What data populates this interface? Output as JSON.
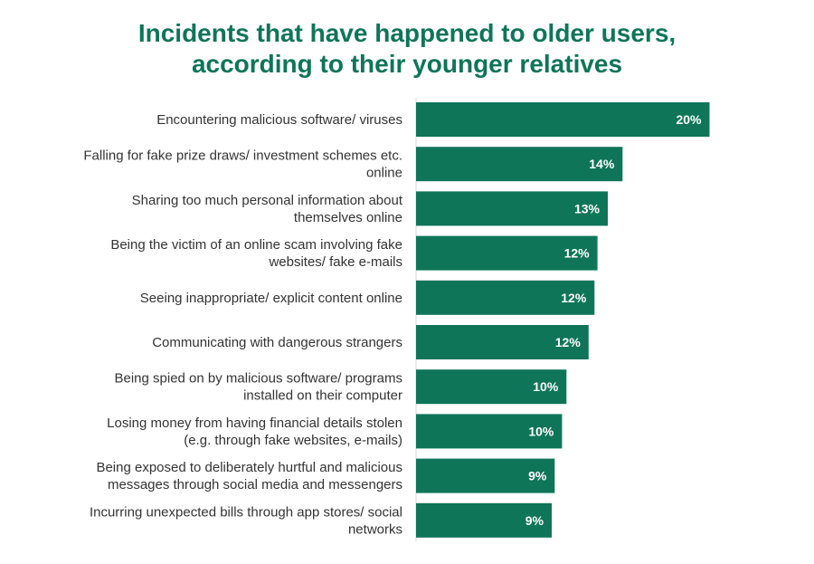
{
  "title_lines": [
    "Incidents that have happened to older users,",
    "according to their younger relatives"
  ],
  "colors": {
    "bar": "#0f7558",
    "title": "#0f7558",
    "axis": "#d9d9d9",
    "label": "#333333",
    "value": "#ffffff"
  },
  "chart_data": {
    "type": "bar",
    "orientation": "horizontal",
    "title": "Incidents that have happened to older users, according to their younger relatives",
    "xlabel": "",
    "ylabel": "",
    "value_unit": "%",
    "grid": false,
    "legend": "none",
    "categories": [
      [
        "Encountering malicious software/ viruses"
      ],
      [
        "Falling for fake prize draws/ investment schemes etc.",
        "online"
      ],
      [
        "Sharing too much personal information about",
        "themselves online"
      ],
      [
        "Being the victim of an online scam involving fake",
        "websites/ fake e-mails"
      ],
      [
        "Seeing inappropriate/ explicit content online"
      ],
      [
        "Communicating with dangerous strangers"
      ],
      [
        "Being spied on by malicious software/ programs",
        "installed on their computer"
      ],
      [
        "Losing money from having financial details stolen",
        "(e.g. through fake websites, e-mails)"
      ],
      [
        "Being exposed to deliberately hurtful and malicious",
        "messages through social media and messengers"
      ],
      [
        "Incurring unexpected bills through app stores/ social",
        "networks"
      ]
    ],
    "values": [
      20,
      14,
      13,
      12,
      12,
      12,
      10,
      10,
      9,
      9
    ],
    "bar_values_precise": [
      19.9,
      14.0,
      13.0,
      12.3,
      12.1,
      11.7,
      10.2,
      9.9,
      9.4,
      9.2
    ],
    "value_labels": [
      "20%",
      "14%",
      "13%",
      "12%",
      "12%",
      "12%",
      "10%",
      "10%",
      "9%",
      "9%"
    ],
    "xlim": [
      0,
      26
    ]
  }
}
